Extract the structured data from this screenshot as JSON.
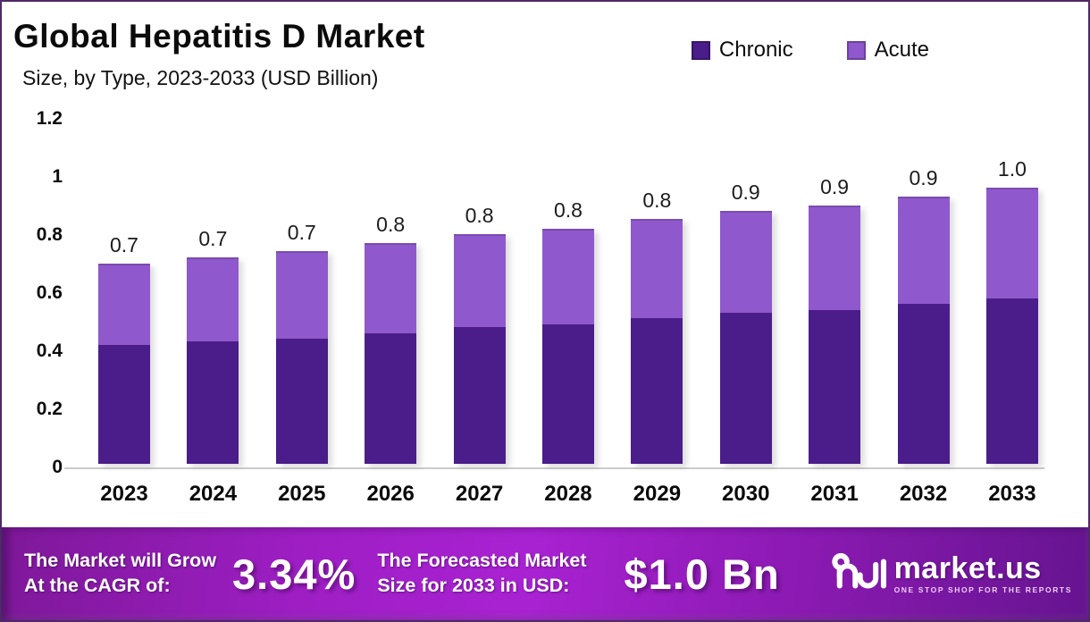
{
  "title": "Global Hepatitis D Market",
  "subtitle": "Size, by Type, 2023-2033 (USD Billion)",
  "legend": [
    {
      "label": "Chronic",
      "color": "#4a1d8a"
    },
    {
      "label": "Acute",
      "color": "#8f58cc"
    }
  ],
  "chart_data": {
    "type": "bar",
    "stacked": true,
    "title": "Global Hepatitis D Market Size, by Type, 2023-2033 (USD Billion)",
    "categories": [
      "2023",
      "2024",
      "2025",
      "2026",
      "2027",
      "2028",
      "2029",
      "2030",
      "2031",
      "2032",
      "2033"
    ],
    "series": [
      {
        "name": "Chronic",
        "color": "#4a1d8a",
        "values": [
          0.41,
          0.42,
          0.43,
          0.45,
          0.47,
          0.48,
          0.5,
          0.52,
          0.53,
          0.55,
          0.57
        ]
      },
      {
        "name": "Acute",
        "color": "#8f58cc",
        "values": [
          0.28,
          0.29,
          0.3,
          0.31,
          0.32,
          0.33,
          0.34,
          0.35,
          0.36,
          0.37,
          0.38
        ]
      }
    ],
    "total_labels": [
      "0.7",
      "0.7",
      "0.7",
      "0.8",
      "0.8",
      "0.8",
      "0.8",
      "0.9",
      "0.9",
      "0.9",
      "1.0"
    ],
    "yticks": [
      "1.2",
      "1",
      "0.8",
      "0.6",
      "0.4",
      "0.2",
      "0"
    ],
    "ylim": [
      0,
      1.2
    ],
    "xlabel": "",
    "ylabel": "",
    "grid": false,
    "legend_position": "top-right"
  },
  "footer": {
    "cagr_label_line1": "The Market will Grow",
    "cagr_label_line2": "At the CAGR of:",
    "cagr_value": "3.34%",
    "forecast_label_line1": "The Forecasted Market",
    "forecast_label_line2": "Size for 2033 in USD:",
    "forecast_value": "$1.0 Bn",
    "brand_name": "market.us",
    "brand_tagline": "ONE STOP SHOP FOR THE REPORTS"
  },
  "colors": {
    "chronic": "#4a1d8a",
    "acute": "#8f58cc",
    "border": "#4e2a68",
    "axis_line": "#cccccc",
    "footer_gradient_bright": "#a922d2",
    "footer_gradient_dark": "#661490",
    "text": "#0b0b0b"
  }
}
